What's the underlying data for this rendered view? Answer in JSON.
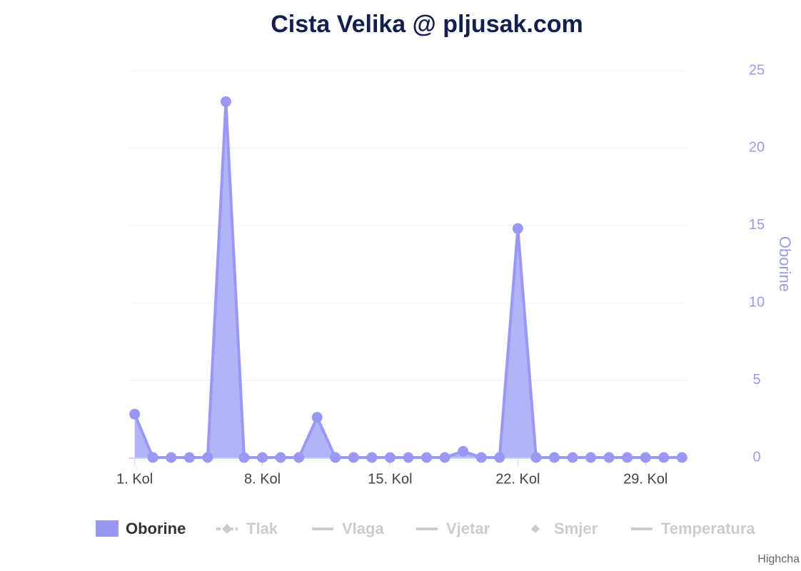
{
  "chart_data": {
    "type": "area",
    "title": "Cista Velika @ pljusak.com",
    "y_axis_title": "Oborine",
    "y_axis_side": "right",
    "x": [
      1,
      2,
      3,
      4,
      5,
      6,
      7,
      8,
      9,
      10,
      11,
      12,
      13,
      14,
      15,
      16,
      17,
      18,
      19,
      20,
      21,
      22,
      23,
      24,
      25,
      26,
      27,
      28,
      29,
      30,
      31
    ],
    "xlim": [
      0.7,
      31.3
    ],
    "xticks": [
      {
        "value": 1,
        "label": "1. Kol"
      },
      {
        "value": 8,
        "label": "8. Kol"
      },
      {
        "value": 15,
        "label": "15. Kol"
      },
      {
        "value": 22,
        "label": "22. Kol"
      },
      {
        "value": 29,
        "label": "29. Kol"
      }
    ],
    "ylim": [
      0,
      25
    ],
    "yticks": [
      0,
      5,
      10,
      15,
      20,
      25
    ],
    "grid": true,
    "series": [
      {
        "name": "Oborine",
        "color": "#9999f5",
        "visible": true,
        "symbol": "area",
        "values": [
          2.8,
          0,
          0,
          0,
          0,
          23,
          0,
          0,
          0,
          0,
          2.6,
          0,
          0,
          0,
          0,
          0,
          0,
          0,
          0.4,
          0,
          0,
          14.8,
          0,
          0,
          0,
          0,
          0,
          0,
          0,
          0,
          0
        ]
      },
      {
        "name": "Tlak",
        "color": "#cccccc",
        "visible": false,
        "symbol": "line-diamond"
      },
      {
        "name": "Vlaga",
        "color": "#cccccc",
        "visible": false,
        "symbol": "line"
      },
      {
        "name": "Vjetar",
        "color": "#cccccc",
        "visible": false,
        "symbol": "line"
      },
      {
        "name": "Smjer",
        "color": "#cccccc",
        "visible": false,
        "symbol": "diamond"
      },
      {
        "name": "Temperatura",
        "color": "#cccccc",
        "visible": false,
        "symbol": "line"
      }
    ],
    "credits": "Highcha"
  }
}
